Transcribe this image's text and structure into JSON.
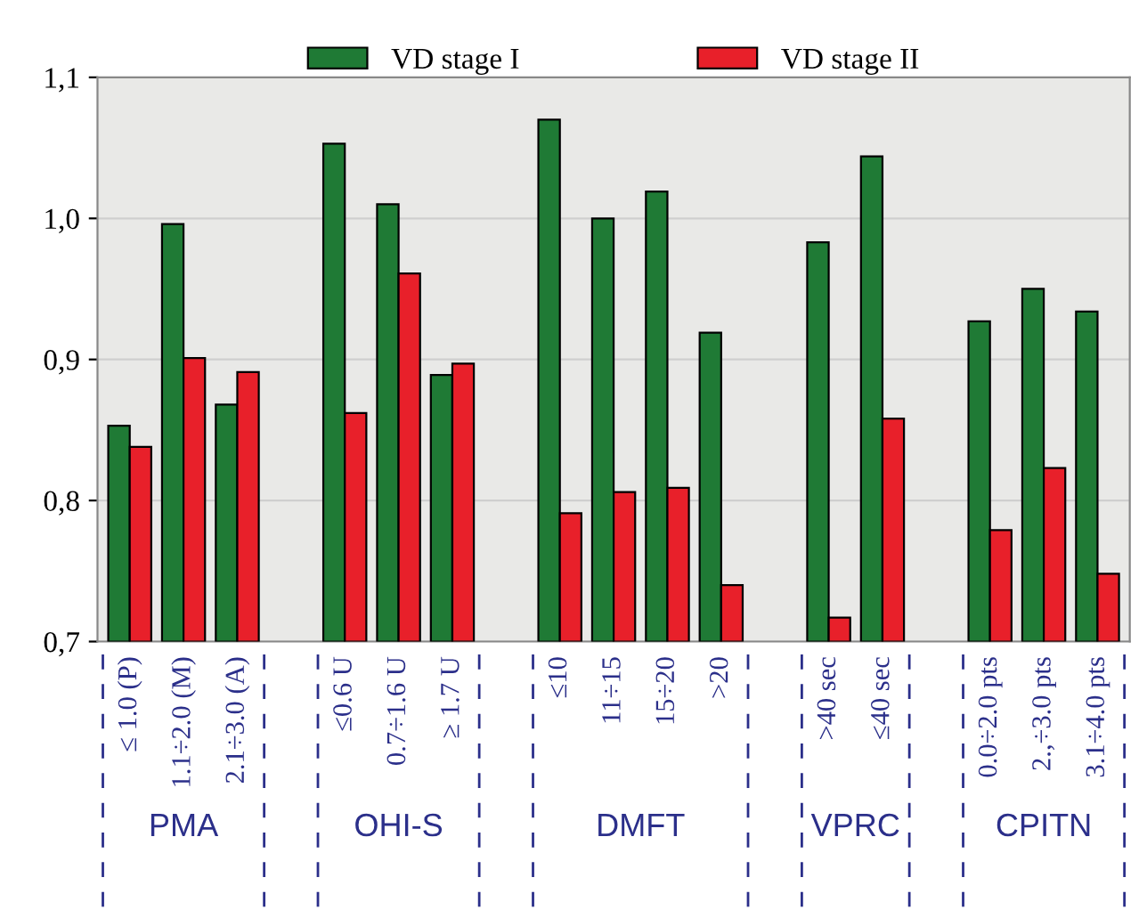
{
  "chart_data": {
    "type": "bar",
    "categories": [
      "≤ 1.0 (P)",
      "1.1÷2.0 (M)",
      "2.1÷3.0 (A)",
      null,
      "≤0.6 U",
      "0.7÷1.6 U",
      "≥ 1.7 U",
      null,
      "≤10",
      "11÷15",
      "15÷20",
      ">20",
      null,
      ">40 sec",
      "≤40 sec",
      null,
      "0.0÷2.0 pts",
      "2.,÷3.0 pts",
      "3.1÷4.0 pts"
    ],
    "series": [
      {
        "name": "VD stage I",
        "color": "#1f7a35",
        "values": [
          0.853,
          0.996,
          0.868,
          null,
          1.053,
          1.01,
          0.889,
          null,
          1.07,
          1.0,
          1.019,
          0.919,
          null,
          0.983,
          1.044,
          null,
          0.927,
          0.95,
          0.934
        ]
      },
      {
        "name": "VD stage II",
        "color": "#e8202a",
        "values": [
          0.838,
          0.901,
          0.891,
          null,
          0.862,
          0.961,
          0.897,
          null,
          0.791,
          0.806,
          0.809,
          0.74,
          null,
          0.717,
          0.858,
          null,
          0.779,
          0.823,
          0.748
        ]
      }
    ],
    "ylim": [
      0.7,
      1.1
    ],
    "yticks": [
      {
        "value": 0.7,
        "label": "0,7"
      },
      {
        "value": 0.8,
        "label": "0,8"
      },
      {
        "value": 0.9,
        "label": "0,9"
      },
      {
        "value": 1.0,
        "label": "1,0"
      },
      {
        "value": 1.1,
        "label": "1,1"
      }
    ],
    "annotations": [
      "PMA",
      "OHI-S",
      "DMFT",
      "VPRC",
      "CPITN"
    ],
    "grid": "y",
    "legend": "top"
  }
}
